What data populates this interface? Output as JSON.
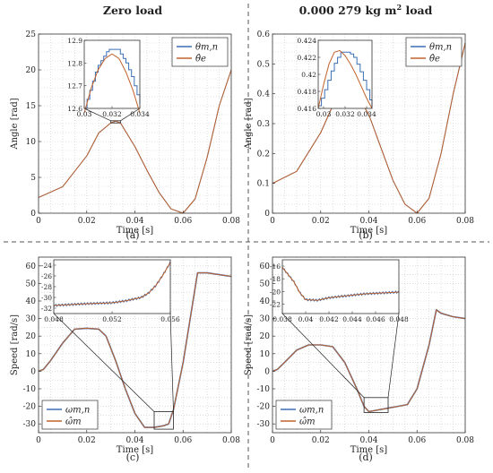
{
  "titles": {
    "left": "Zero load",
    "right_prefix": "0.000 279 kg m",
    "right_sup": "2",
    "right_suffix": " load"
  },
  "chart_data": [
    {
      "type": "line",
      "caption": "(a)",
      "xlabel": "Time [s]",
      "ylabel": "Angle [rad]",
      "xlim": [
        0,
        0.08
      ],
      "ylim": [
        0,
        25
      ],
      "xticks": [
        0,
        0.02,
        0.04,
        0.06,
        0.08
      ],
      "xticklabels": [
        "0",
        "0.02",
        "0.04",
        "0.06",
        "0.08"
      ],
      "yticks": [
        0,
        5,
        10,
        15,
        20,
        25
      ],
      "yticklabels": [
        "0",
        "5",
        "10",
        "15",
        "20",
        "25"
      ],
      "grid": true,
      "legend_position": "top-right",
      "series": [
        {
          "name": "θm,n",
          "color": "#3b6fb6",
          "x": [
            0,
            0.01,
            0.02,
            0.025,
            0.03,
            0.032,
            0.034,
            0.04,
            0.045,
            0.05,
            0.055,
            0.06,
            0.065,
            0.07,
            0.075,
            0.08
          ],
          "y": [
            2.2,
            3.7,
            8.0,
            11.2,
            12.6,
            12.85,
            12.6,
            9.3,
            6.0,
            2.9,
            0.6,
            0.0,
            2.0,
            7.8,
            15.0,
            20.0
          ]
        },
        {
          "name": "θ̂e",
          "color": "#c0622c",
          "x": [
            0,
            0.01,
            0.02,
            0.025,
            0.03,
            0.032,
            0.034,
            0.04,
            0.045,
            0.05,
            0.055,
            0.06,
            0.065,
            0.07,
            0.075,
            0.08
          ],
          "y": [
            2.2,
            3.7,
            8.0,
            11.2,
            12.6,
            12.85,
            12.6,
            9.3,
            6.0,
            2.9,
            0.6,
            0.0,
            2.0,
            7.8,
            15.0,
            20.0
          ]
        }
      ],
      "inset": {
        "xlim": [
          0.03,
          0.034
        ],
        "ylim": [
          12.6,
          12.9
        ],
        "xticklabels": [
          "0.03",
          "0.032",
          "0.034"
        ],
        "xticks": [
          0.03,
          0.032,
          0.034
        ],
        "yticks": [
          12.6,
          12.7,
          12.8,
          12.9
        ],
        "yticklabels": [
          "12.6",
          "12.7",
          "12.8",
          "12.9"
        ],
        "series": [
          {
            "name": "θm,n",
            "color": "#3b6fb6",
            "step": true,
            "x": [
              0.03,
              0.0302,
              0.0304,
              0.0306,
              0.0308,
              0.031,
              0.0312,
              0.0314,
              0.0316,
              0.0318,
              0.032,
              0.0322,
              0.0324,
              0.0326,
              0.0328,
              0.033,
              0.0332,
              0.0334,
              0.0336,
              0.0338,
              0.034
            ],
            "y": [
              12.6,
              12.64,
              12.68,
              12.72,
              12.76,
              12.79,
              12.81,
              12.83,
              12.85,
              12.86,
              12.86,
              12.86,
              12.86,
              12.84,
              12.82,
              12.8,
              12.77,
              12.74,
              12.7,
              12.66,
              12.62
            ]
          },
          {
            "name": "θ̂e",
            "color": "#c0622c",
            "x": [
              0.03,
              0.0305,
              0.031,
              0.0315,
              0.032,
              0.0325,
              0.033,
              0.0335,
              0.034
            ],
            "y": [
              12.58,
              12.69,
              12.77,
              12.82,
              12.84,
              12.82,
              12.76,
              12.68,
              12.58
            ]
          }
        ]
      }
    },
    {
      "type": "line",
      "caption": "(b)",
      "xlabel": "Time [s]",
      "ylabel": "Angle [rad]",
      "xlim": [
        0,
        0.08
      ],
      "ylim": [
        0,
        0.6
      ],
      "xticks": [
        0,
        0.02,
        0.04,
        0.06,
        0.08
      ],
      "xticklabels": [
        "0",
        "0.02",
        "0.04",
        "0.06",
        "0.08"
      ],
      "yticks": [
        0,
        0.1,
        0.2,
        0.3,
        0.4,
        0.5,
        0.6
      ],
      "yticklabels": [
        "0",
        "0.1",
        "0.2",
        "0.3",
        "0.4",
        "0.5",
        "0.6"
      ],
      "grid": true,
      "legend_position": "top-right",
      "series": [
        {
          "name": "θm,n",
          "color": "#3b6fb6",
          "x": [
            0,
            0.01,
            0.02,
            0.025,
            0.03,
            0.032,
            0.034,
            0.04,
            0.045,
            0.05,
            0.055,
            0.06,
            0.065,
            0.07,
            0.075,
            0.08
          ],
          "y": [
            0.1,
            0.14,
            0.27,
            0.36,
            0.41,
            0.42,
            0.41,
            0.33,
            0.22,
            0.11,
            0.03,
            0.0,
            0.05,
            0.2,
            0.4,
            0.57
          ]
        },
        {
          "name": "θ̂e",
          "color": "#c0622c",
          "x": [
            0,
            0.01,
            0.02,
            0.025,
            0.03,
            0.032,
            0.034,
            0.04,
            0.045,
            0.05,
            0.055,
            0.06,
            0.065,
            0.07,
            0.075,
            0.08
          ],
          "y": [
            0.1,
            0.14,
            0.27,
            0.36,
            0.41,
            0.42,
            0.41,
            0.33,
            0.22,
            0.11,
            0.03,
            0.0,
            0.05,
            0.2,
            0.4,
            0.57
          ]
        }
      ],
      "inset": {
        "xlim": [
          0.0295,
          0.0345
        ],
        "ylim": [
          0.416,
          0.424
        ],
        "xticks": [
          0.03,
          0.032,
          0.034
        ],
        "xticklabels": [
          "0.03",
          "0.032",
          "0.034"
        ],
        "yticks": [
          0.416,
          0.418,
          0.42,
          0.422,
          0.424
        ],
        "yticklabels": [
          "0.416",
          "0.418",
          "0.42",
          "0.422",
          "0.424"
        ],
        "series": [
          {
            "name": "θm,n",
            "color": "#3b6fb6",
            "step": true,
            "x": [
              0.0295,
              0.0298,
              0.0301,
              0.0304,
              0.0307,
              0.031,
              0.0313,
              0.0316,
              0.0319,
              0.0322,
              0.0325,
              0.0328,
              0.0331,
              0.0334,
              0.0337,
              0.034,
              0.0343,
              0.0345
            ],
            "y": [
              0.4163,
              0.4172,
              0.4182,
              0.4193,
              0.4204,
              0.4213,
              0.422,
              0.4226,
              0.4226,
              0.4226,
              0.4224,
              0.422,
              0.4212,
              0.4203,
              0.4193,
              0.4182,
              0.417,
              0.4162
            ]
          },
          {
            "name": "θ̂e",
            "color": "#c0622c",
            "x": [
              0.0295,
              0.03,
              0.0305,
              0.031,
              0.0315,
              0.032,
              0.0325,
              0.033,
              0.0335,
              0.034,
              0.0345
            ],
            "y": [
              0.416,
              0.4188,
              0.4212,
              0.4226,
              0.4228,
              0.4222,
              0.4212,
              0.42,
              0.4186,
              0.4172,
              0.416
            ]
          }
        ]
      }
    },
    {
      "type": "line",
      "caption": "(c)",
      "xlabel": "Time [s]",
      "ylabel": "Speed [rad/s]",
      "xlim": [
        0,
        0.08
      ],
      "ylim": [
        -35,
        65
      ],
      "xticks": [
        0,
        0.02,
        0.04,
        0.06,
        0.08
      ],
      "xticklabels": [
        "0",
        "0.02",
        "0.04",
        "0.06",
        "0.08"
      ],
      "yticks": [
        -30,
        -20,
        -10,
        0,
        10,
        20,
        30,
        40,
        50,
        60
      ],
      "yticklabels": [
        "-30",
        "-20",
        "-10",
        "0",
        "10",
        "20",
        "30",
        "40",
        "50",
        "60"
      ],
      "grid": true,
      "legend_position": "bottom-left",
      "series": [
        {
          "name": "ωm,n",
          "color": "#3b6fb6",
          "x": [
            0,
            0.002,
            0.005,
            0.01,
            0.015,
            0.02,
            0.025,
            0.028,
            0.032,
            0.036,
            0.04,
            0.044,
            0.048,
            0.052,
            0.054,
            0.056,
            0.06,
            0.066,
            0.07,
            0.075,
            0.08
          ],
          "y": [
            0,
            1,
            6,
            16,
            24,
            24.5,
            24,
            20,
            6,
            -10,
            -24,
            -32,
            -32,
            -31,
            -30,
            -22,
            5,
            56,
            56,
            55,
            54
          ]
        },
        {
          "name": "ω̂m",
          "color": "#c0622c",
          "x": [
            0,
            0.002,
            0.005,
            0.01,
            0.015,
            0.02,
            0.025,
            0.028,
            0.032,
            0.036,
            0.04,
            0.044,
            0.048,
            0.052,
            0.054,
            0.056,
            0.06,
            0.066,
            0.07,
            0.075,
            0.08
          ],
          "y": [
            0,
            1,
            6,
            16,
            24,
            24.5,
            24,
            20,
            6,
            -10,
            -24,
            -32,
            -32,
            -31,
            -30,
            -22,
            5,
            56,
            56,
            55,
            54
          ]
        }
      ],
      "inset": {
        "xlim": [
          0.048,
          0.056
        ],
        "ylim": [
          -33,
          -23
        ],
        "xticks": [
          0.048,
          0.052,
          0.056
        ],
        "xticklabels": [
          "0.048",
          "0.052",
          "0.056"
        ],
        "yticks": [
          -32,
          -30,
          -28,
          -26,
          -24
        ],
        "yticklabels": [
          "-32",
          "-30",
          "-28",
          "-26",
          "-24"
        ],
        "series": [
          {
            "name": "ωm,n",
            "color": "#3b6fb6",
            "noisy": true,
            "x": [
              0.048,
              0.05,
              0.052,
              0.053,
              0.054,
              0.0545,
              0.055,
              0.0555,
              0.056
            ],
            "y": [
              -31.5,
              -31.2,
              -31.0,
              -30.6,
              -30.0,
              -29.2,
              -27.8,
              -25.8,
              -23.5
            ]
          },
          {
            "name": "ω̂m",
            "color": "#c0622c",
            "x": [
              0.048,
              0.05,
              0.052,
              0.053,
              0.054,
              0.0545,
              0.055,
              0.0555,
              0.056
            ],
            "y": [
              -31.5,
              -31.2,
              -31.0,
              -30.6,
              -30.0,
              -29.2,
              -27.8,
              -25.8,
              -23.5
            ]
          }
        ]
      }
    },
    {
      "type": "line",
      "caption": "(d)",
      "xlabel": "Time [s]",
      "ylabel": "Speed [rad/s]",
      "xlim": [
        0,
        0.08
      ],
      "ylim": [
        -35,
        65
      ],
      "xticks": [
        0,
        0.02,
        0.04,
        0.06,
        0.08
      ],
      "xticklabels": [
        "0",
        "0.02",
        "0.04",
        "0.06",
        "0.08"
      ],
      "yticks": [
        -30,
        -20,
        -10,
        0,
        10,
        20,
        30,
        40,
        50,
        60
      ],
      "yticklabels": [
        "-30",
        "-20",
        "-10",
        "0",
        "10",
        "20",
        "30",
        "40",
        "50",
        "60"
      ],
      "grid": true,
      "legend_position": "bottom-left",
      "series": [
        {
          "name": "ωm,n",
          "color": "#3b6fb6",
          "x": [
            0,
            0.002,
            0.005,
            0.01,
            0.015,
            0.02,
            0.025,
            0.03,
            0.035,
            0.038,
            0.04,
            0.044,
            0.048,
            0.052,
            0.056,
            0.06,
            0.065,
            0.068,
            0.07,
            0.075,
            0.08
          ],
          "y": [
            0,
            1,
            5,
            12,
            15,
            15,
            14,
            5,
            -10,
            -20,
            -23,
            -22,
            -21,
            -20,
            -19,
            -10,
            15,
            35,
            33,
            31,
            30
          ]
        },
        {
          "name": "ω̂m",
          "color": "#c0622c",
          "x": [
            0,
            0.002,
            0.005,
            0.01,
            0.015,
            0.02,
            0.025,
            0.03,
            0.035,
            0.038,
            0.04,
            0.044,
            0.048,
            0.052,
            0.056,
            0.06,
            0.065,
            0.068,
            0.07,
            0.075,
            0.08
          ],
          "y": [
            0,
            1,
            5,
            12,
            15,
            15,
            14,
            5,
            -10,
            -20,
            -23,
            -22,
            -21,
            -20,
            -19,
            -10,
            15,
            35,
            33,
            31,
            30
          ]
        }
      ],
      "inset": {
        "xlim": [
          0.038,
          0.048
        ],
        "ylim": [
          -23.5,
          -15
        ],
        "xticks": [
          0.038,
          0.04,
          0.042,
          0.044,
          0.046,
          0.048
        ],
        "xticklabels": [
          "0.038",
          "0.04",
          "0.042",
          "0.044",
          "0.046",
          "0.048"
        ],
        "yticks": [
          -22,
          -20,
          -18,
          -16
        ],
        "yticklabels": [
          "-22",
          "-20",
          "-18",
          "-16"
        ],
        "series": [
          {
            "name": "ωm,n",
            "color": "#3b6fb6",
            "noisy": true,
            "x": [
              0.038,
              0.039,
              0.0395,
              0.04,
              0.041,
              0.042,
              0.043,
              0.044,
              0.045,
              0.046,
              0.047,
              0.048
            ],
            "y": [
              -16.2,
              -18.5,
              -20.2,
              -21.3,
              -21.4,
              -21.0,
              -20.8,
              -20.6,
              -20.4,
              -20.3,
              -20.2,
              -20.1
            ]
          },
          {
            "name": "ω̂m",
            "color": "#c0622c",
            "x": [
              0.038,
              0.039,
              0.0395,
              0.04,
              0.041,
              0.042,
              0.043,
              0.044,
              0.045,
              0.046,
              0.047,
              0.048
            ],
            "y": [
              -16.2,
              -18.5,
              -20.2,
              -21.3,
              -21.4,
              -21.0,
              -20.8,
              -20.6,
              -20.4,
              -20.3,
              -20.2,
              -20.1
            ]
          }
        ]
      }
    }
  ]
}
